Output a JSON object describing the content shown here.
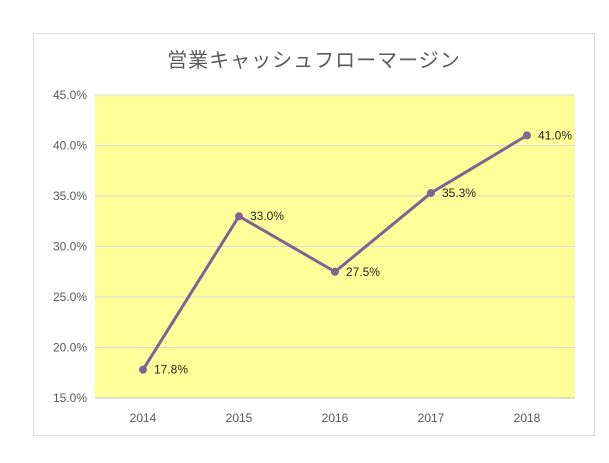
{
  "chart_data": {
    "type": "line",
    "title": "営業キャッシュフローマージン",
    "categories": [
      "2014",
      "2015",
      "2016",
      "2017",
      "2018"
    ],
    "series": [
      {
        "values": [
          17.8,
          33.0,
          27.5,
          35.3,
          41.0
        ],
        "labels": [
          "17.8%",
          "33.0%",
          "27.5%",
          "35.3%",
          "41.0%"
        ]
      }
    ],
    "ylim": [
      15,
      45
    ],
    "yticks": [
      15,
      20,
      25,
      30,
      35,
      40,
      45
    ],
    "ytick_labels": [
      "15.0%",
      "20.0%",
      "25.0%",
      "30.0%",
      "35.0%",
      "40.0%",
      "45.0%"
    ],
    "xlabel": "",
    "ylabel": "",
    "grid": true,
    "legend": "none",
    "colors": {
      "line": "#7f6394",
      "plot_bg": "#ffff99",
      "grid": "#d9d9d9"
    }
  }
}
